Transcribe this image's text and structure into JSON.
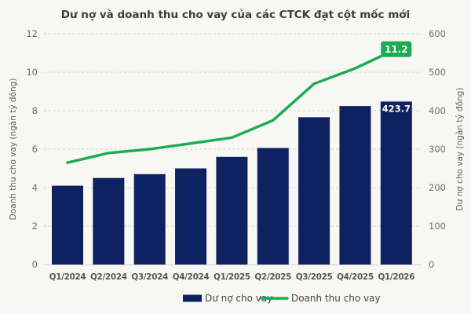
{
  "title": "Dư nợ và doanh thu cho vay của các CTCK đạt cột mốc mới",
  "colors": {
    "bar": "#0e2161",
    "line": "#1aac4e",
    "badge": "#1aac4e",
    "background": "#f7f7f4"
  },
  "chart_data": {
    "type": "combo",
    "categories": [
      "Q1/2024",
      "Q2/2024",
      "Q3/2024",
      "Q4/2024",
      "Q1/2025",
      "Q2/2025",
      "Q3/2025",
      "Q4/2025",
      "Q1/2026"
    ],
    "series": [
      {
        "name": "Dư nợ cho vay",
        "type": "bar",
        "axis": "right",
        "values": [
          205,
          225,
          235,
          250,
          280,
          303,
          383,
          412,
          423.7
        ]
      },
      {
        "name": "Doanh thu cho vay",
        "type": "line",
        "axis": "left",
        "values": [
          5.3,
          5.8,
          6.0,
          6.3,
          6.6,
          7.5,
          9.4,
          10.2,
          11.2
        ]
      }
    ],
    "left_axis": {
      "label": "Doanh thu cho vay (ngàn tỷ đồng)",
      "ticks": [
        0,
        2,
        4,
        6,
        8,
        10,
        12
      ],
      "range": [
        0,
        12
      ]
    },
    "right_axis": {
      "label": "Dư nợ cho vay (ngàn tỷ đồng)",
      "ticks": [
        0,
        100,
        200,
        300,
        400,
        500,
        600
      ],
      "range": [
        0,
        600
      ]
    },
    "grid": true,
    "legend_position": "bottom",
    "annotations": [
      {
        "series": "Doanh thu cho vay",
        "category": "Q1/2026",
        "text": "11.2",
        "style": "green-badge"
      },
      {
        "series": "Dư nợ cho vay",
        "category": "Q1/2026",
        "text": "423.7",
        "style": "white-in-bar"
      }
    ]
  },
  "legend": {
    "items": [
      {
        "label": "Dư nợ cho vay",
        "swatch": "bar"
      },
      {
        "label": "Doanh thu cho vay",
        "swatch": "line"
      }
    ]
  }
}
